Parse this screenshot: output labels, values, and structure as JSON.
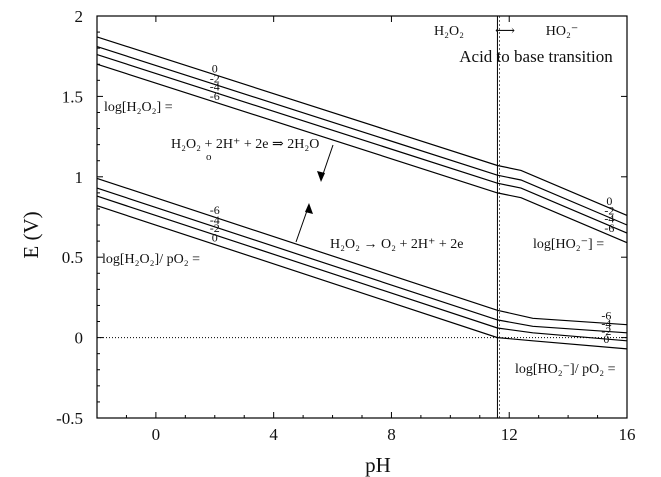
{
  "chart_data": {
    "type": "line",
    "title": "",
    "xlabel": "pH",
    "ylabel": "E (V)",
    "xlim": [
      -2,
      16
    ],
    "ylim": [
      -0.5,
      2
    ],
    "xticks": [
      0,
      4,
      8,
      12,
      16
    ],
    "yticks": [
      -0.5,
      0,
      0.5,
      1,
      1.5,
      2
    ],
    "xtick_labels": [
      "0",
      "4",
      "8",
      "12",
      "16"
    ],
    "ytick_labels": [
      "-0.5",
      "0",
      "0.5",
      "1",
      "1.5",
      "2"
    ],
    "grid": false,
    "transition_ph": 11.6,
    "zero_line": 0,
    "upper_group": {
      "reaction": "H₂O₂ + 2H⁺ + 2e ⇒ 2H₂O",
      "acid_label": "log[H₂O₂] =",
      "base_label": "log[HO₂⁻] =",
      "series": [
        {
          "name": "0",
          "x": [
            -2,
            11.6,
            12.4,
            16
          ],
          "y": [
            1.87,
            1.07,
            1.04,
            0.76
          ]
        },
        {
          "name": "-2",
          "x": [
            -2,
            11.6,
            12.4,
            16
          ],
          "y": [
            1.81,
            1.01,
            0.98,
            0.7
          ]
        },
        {
          "name": "-4",
          "x": [
            -2,
            11.6,
            12.4,
            16
          ],
          "y": [
            1.76,
            0.96,
            0.93,
            0.65
          ]
        },
        {
          "name": "-6",
          "x": [
            -2,
            11.6,
            12.4,
            16
          ],
          "y": [
            1.7,
            0.9,
            0.87,
            0.59
          ]
        }
      ]
    },
    "lower_group": {
      "reaction": "H₂O₂ → O₂ + 2H⁺ + 2e",
      "acid_label": "log[H₂O₂]/ pO₂ =",
      "base_label": "log[HO₂⁻]/ pO₂ =",
      "series": [
        {
          "name": "-6",
          "x": [
            -2,
            11.6,
            12.8,
            16
          ],
          "y": [
            0.99,
            0.17,
            0.12,
            0.08
          ]
        },
        {
          "name": "-4",
          "x": [
            -2,
            11.6,
            12.8,
            16
          ],
          "y": [
            0.93,
            0.11,
            0.07,
            0.03
          ]
        },
        {
          "name": "-2",
          "x": [
            -2,
            11.6,
            12.8,
            16
          ],
          "y": [
            0.88,
            0.06,
            0.03,
            -0.02
          ]
        },
        {
          "name": "0",
          "x": [
            -2,
            11.6,
            12.8,
            16
          ],
          "y": [
            0.82,
            0.0,
            -0.02,
            -0.07
          ]
        }
      ]
    },
    "transition_annotation": {
      "left": "H₂O₂",
      "arrow": "⟷",
      "right": "HO₂⁻",
      "text": "Acid to base transition"
    }
  }
}
